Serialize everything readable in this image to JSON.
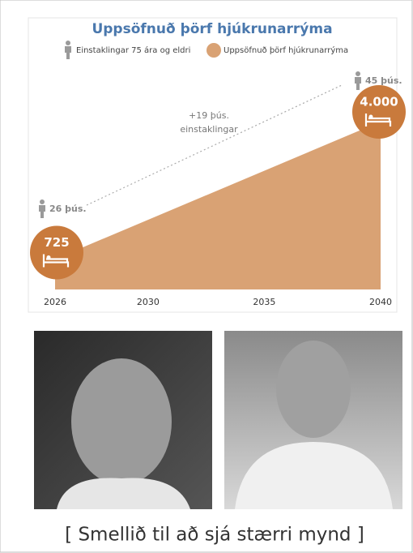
{
  "chart_data": {
    "type": "area",
    "title": "Uppsöfnuð þörf hjúkrunarrýma",
    "x": [
      2026,
      2040
    ],
    "xlim": [
      2026,
      2040
    ],
    "xticks": [
      2026,
      2030,
      2035,
      2040
    ],
    "annotation": [
      "+19 þús.",
      "einstaklingar"
    ],
    "series": [
      {
        "name": "Einstaklingar 75 ára og eldri",
        "color": "#9a9a9a",
        "values": [
          26,
          45
        ],
        "value_labels": [
          "26 þús.",
          "45 þús."
        ],
        "axis": "y2"
      },
      {
        "name": "Uppsöfnuð þörf hjúkrunarrýma",
        "color": "#d9a274",
        "values": [
          725,
          4000
        ],
        "value_labels": [
          "725",
          "4.000"
        ]
      }
    ]
  },
  "caption": "[ Smellið til að sjá stærri mynd ]"
}
